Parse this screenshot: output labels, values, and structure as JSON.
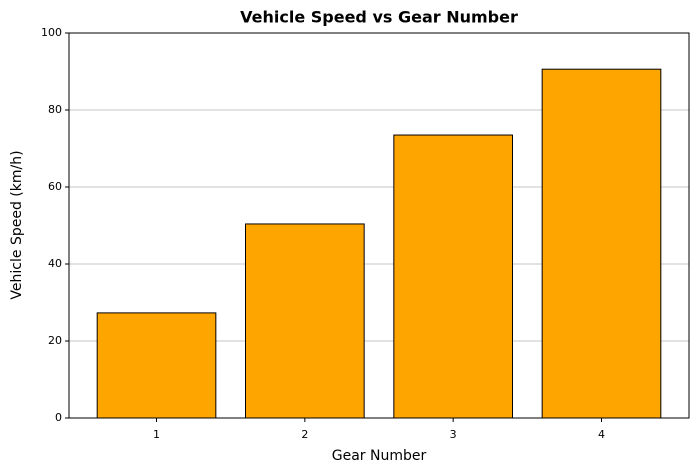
{
  "chart_data": {
    "type": "bar",
    "title": "Vehicle Speed vs Gear Number",
    "x_label": "Gear Number",
    "y_label": "Vehicle Speed (km/h)",
    "categories": [
      "1",
      "2",
      "3",
      "4"
    ],
    "values": [
      27.3,
      50.4,
      73.5,
      90.6
    ],
    "color": "#ffa500",
    "edgecolor": "#000000",
    "ylim": [
      0,
      100
    ],
    "yticks": [
      0,
      20,
      40,
      60,
      80,
      100
    ],
    "grid": true
  }
}
